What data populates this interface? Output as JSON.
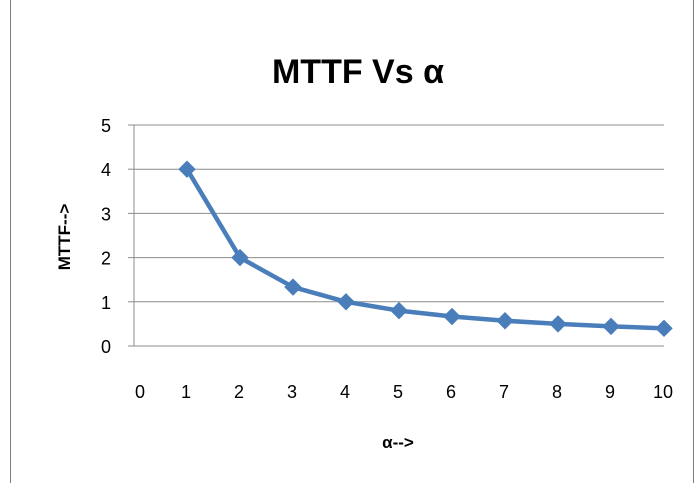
{
  "chart_data": {
    "type": "line",
    "title": "MTTF Vs α",
    "xlabel": "α-->",
    "ylabel": "MTTF-->",
    "x_ticks": [
      "0",
      "1",
      "2",
      "3",
      "4",
      "5",
      "6",
      "7",
      "8",
      "9",
      "10"
    ],
    "y_ticks": [
      "0",
      "1",
      "2",
      "3",
      "4",
      "5"
    ],
    "xlim": [
      0,
      10
    ],
    "ylim": [
      0,
      5
    ],
    "grid": "horizontal",
    "legend": "none",
    "series": [
      {
        "x": [
          1,
          2,
          3,
          4,
          5,
          6,
          7,
          8,
          9,
          10
        ],
        "values": [
          4,
          2,
          1.333,
          1,
          0.8,
          0.667,
          0.571,
          0.5,
          0.444,
          0.4
        ],
        "color": "#4a7ebb",
        "marker": "diamond"
      }
    ],
    "colors": {
      "gridline": "#8c8c8c",
      "axis": "#8c8c8c",
      "frame": "#7f7f7f",
      "text": "#000000"
    }
  }
}
